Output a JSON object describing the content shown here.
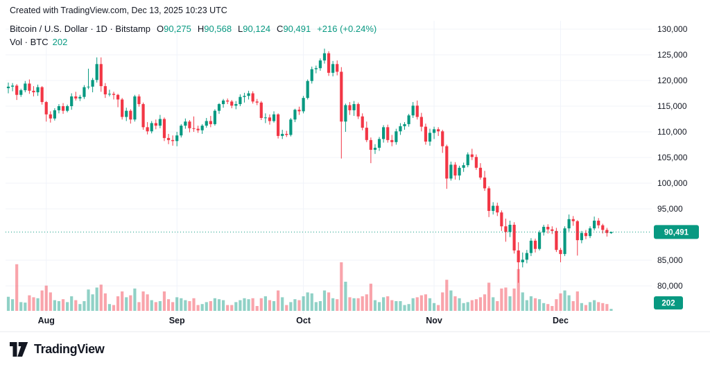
{
  "attribution": "Created with TradingView.com, Dec 13, 2025 10:23 UTC",
  "legend": {
    "title": "Bitcoin / U.S. Dollar · 1D · Bitstamp",
    "ohlc": [
      {
        "label": "O",
        "value": "90,275"
      },
      {
        "label": "H",
        "value": "90,568"
      },
      {
        "label": "L",
        "value": "90,124"
      },
      {
        "label": "C",
        "value": "90,491"
      }
    ],
    "change": "+216 (+0.24%)",
    "volume_label": "Vol · BTC",
    "volume_value": "202"
  },
  "colors": {
    "up": "#089981",
    "down": "#f23645",
    "vol_up": "rgba(8,153,129,0.45)",
    "vol_down": "rgba(242,54,69,0.45)",
    "text": "#131722",
    "muted": "#787b86",
    "grid": "#f0f3fa",
    "axis_border": "#e7e9ee",
    "badge": "#089981"
  },
  "y_axis": {
    "ticks": [
      {
        "value": 130000,
        "label": "130,000"
      },
      {
        "value": 125000,
        "label": "125,000"
      },
      {
        "value": 120000,
        "label": "120,000"
      },
      {
        "value": 115000,
        "label": "115,000"
      },
      {
        "value": 110000,
        "label": "110,000"
      },
      {
        "value": 105000,
        "label": "105,000"
      },
      {
        "value": 100000,
        "label": "100,000"
      },
      {
        "value": 95000,
        "label": "95,000"
      },
      {
        "value": 85000,
        "label": "85,000"
      },
      {
        "value": 80000,
        "label": "80,000"
      }
    ],
    "price_badge": {
      "value": 90491,
      "label": "90,491"
    },
    "volume_badge": "202"
  },
  "x_axis": {
    "ticks": [
      {
        "label": "Aug",
        "date": "2025-08-01"
      },
      {
        "label": "Sep",
        "date": "2025-09-01"
      },
      {
        "label": "Oct",
        "date": "2025-10-01"
      },
      {
        "label": "Nov",
        "date": "2025-11-01"
      },
      {
        "label": "Dec",
        "date": "2025-12-01"
      }
    ]
  },
  "footer": {
    "brand": "TradingView"
  },
  "chart_data": {
    "type": "candlestick",
    "symbol": "Bitcoin / U.S. Dollar",
    "interval": "1D",
    "exchange": "Bitstamp",
    "price_line": 90491,
    "ylim": [
      79000,
      131500
    ],
    "volume_max": 5000,
    "columns": [
      "date",
      "open",
      "high",
      "low",
      "close",
      "volume"
    ],
    "candles": [
      [
        "2025-07-23",
        118500,
        119600,
        117500,
        118800,
        1450
      ],
      [
        "2025-07-24",
        118800,
        119500,
        117900,
        119000,
        1200
      ],
      [
        "2025-07-25",
        119000,
        119300,
        116200,
        117200,
        4800
      ],
      [
        "2025-07-26",
        117200,
        118400,
        116800,
        118100,
        900
      ],
      [
        "2025-07-27",
        118100,
        119900,
        117700,
        119400,
        850
      ],
      [
        "2025-07-28",
        119400,
        120200,
        117400,
        118000,
        1600
      ],
      [
        "2025-07-29",
        118000,
        118900,
        116900,
        117700,
        1400
      ],
      [
        "2025-07-30",
        117700,
        119200,
        117000,
        118700,
        1300
      ],
      [
        "2025-07-31",
        118700,
        118900,
        115300,
        115800,
        2100
      ],
      [
        "2025-08-01",
        115800,
        116000,
        112000,
        113400,
        2600
      ],
      [
        "2025-08-02",
        113400,
        114000,
        111800,
        112600,
        1900
      ],
      [
        "2025-08-03",
        112600,
        114600,
        112200,
        114200,
        1100
      ],
      [
        "2025-08-04",
        114200,
        115400,
        113600,
        115000,
        1000
      ],
      [
        "2025-08-05",
        115000,
        115600,
        113500,
        114100,
        1200
      ],
      [
        "2025-08-06",
        114100,
        115300,
        113800,
        115000,
        900
      ],
      [
        "2025-08-07",
        115000,
        117500,
        114300,
        116900,
        1500
      ],
      [
        "2025-08-08",
        116900,
        117800,
        116100,
        116500,
        1100
      ],
      [
        "2025-08-09",
        116500,
        117200,
        116000,
        116800,
        700
      ],
      [
        "2025-08-10",
        116800,
        119100,
        116400,
        118700,
        1000
      ],
      [
        "2025-08-11",
        118700,
        122300,
        118300,
        118800,
        2200
      ],
      [
        "2025-08-12",
        118800,
        120500,
        117700,
        120100,
        1700
      ],
      [
        "2025-08-13",
        120100,
        124500,
        119600,
        123200,
        2400
      ],
      [
        "2025-08-14",
        123200,
        124500,
        117800,
        118900,
        2700
      ],
      [
        "2025-08-15",
        118900,
        119500,
        116600,
        117300,
        1800
      ],
      [
        "2025-08-16",
        117300,
        118200,
        116900,
        117400,
        700
      ],
      [
        "2025-08-17",
        117400,
        117800,
        116300,
        117200,
        600
      ],
      [
        "2025-08-18",
        117200,
        117400,
        114800,
        116300,
        1500
      ],
      [
        "2025-08-19",
        116300,
        116600,
        112400,
        112900,
        2000
      ],
      [
        "2025-08-20",
        112900,
        114700,
        112100,
        114100,
        1400
      ],
      [
        "2025-08-21",
        114100,
        114400,
        111600,
        112400,
        1600
      ],
      [
        "2025-08-22",
        112400,
        117200,
        112000,
        116900,
        2300
      ],
      [
        "2025-08-23",
        116900,
        117300,
        114900,
        115400,
        900
      ],
      [
        "2025-08-24",
        115400,
        115700,
        110400,
        110900,
        2000
      ],
      [
        "2025-08-25",
        110900,
        111900,
        109500,
        110100,
        1700
      ],
      [
        "2025-08-26",
        110100,
        112100,
        109700,
        111700,
        1100
      ],
      [
        "2025-08-27",
        111700,
        112400,
        110500,
        111200,
        900
      ],
      [
        "2025-08-28",
        111200,
        113300,
        110700,
        112500,
        1000
      ],
      [
        "2025-08-29",
        112500,
        112800,
        108200,
        108800,
        2000
      ],
      [
        "2025-08-30",
        108800,
        109600,
        107600,
        108400,
        1200
      ],
      [
        "2025-08-31",
        108400,
        109300,
        107300,
        108200,
        900
      ],
      [
        "2025-09-01",
        108200,
        110000,
        107200,
        109300,
        1400
      ],
      [
        "2025-09-02",
        109300,
        111500,
        108900,
        111200,
        1300
      ],
      [
        "2025-09-03",
        111200,
        112600,
        110600,
        112000,
        1100
      ],
      [
        "2025-09-04",
        112000,
        112300,
        109900,
        110700,
        1000
      ],
      [
        "2025-09-05",
        110700,
        113000,
        110000,
        110600,
        1300
      ],
      [
        "2025-09-06",
        110600,
        111200,
        109800,
        110300,
        600
      ],
      [
        "2025-09-07",
        110300,
        111500,
        109600,
        111200,
        700
      ],
      [
        "2025-09-08",
        111200,
        112700,
        110800,
        112100,
        900
      ],
      [
        "2025-09-09",
        112100,
        113100,
        110900,
        111500,
        1000
      ],
      [
        "2025-09-10",
        111500,
        114400,
        111200,
        114100,
        1300
      ],
      [
        "2025-09-11",
        114100,
        115600,
        113500,
        115400,
        1200
      ],
      [
        "2025-09-12",
        115400,
        116400,
        114700,
        116100,
        1100
      ],
      [
        "2025-09-13",
        116100,
        116500,
        115400,
        115900,
        600
      ],
      [
        "2025-09-14",
        115900,
        116200,
        114600,
        115100,
        600
      ],
      [
        "2025-09-15",
        115100,
        116000,
        114400,
        115400,
        900
      ],
      [
        "2025-09-16",
        115400,
        117300,
        115000,
        116800,
        1100
      ],
      [
        "2025-09-17",
        116800,
        117600,
        115700,
        117000,
        1300
      ],
      [
        "2025-09-18",
        117000,
        118000,
        116300,
        117500,
        1200
      ],
      [
        "2025-09-19",
        117500,
        117900,
        115500,
        115900,
        1300
      ],
      [
        "2025-09-20",
        115900,
        116400,
        115200,
        115700,
        500
      ],
      [
        "2025-09-21",
        115700,
        116000,
        112300,
        112700,
        1300
      ],
      [
        "2025-09-22",
        112700,
        113600,
        111700,
        112800,
        1500
      ],
      [
        "2025-09-23",
        112800,
        113400,
        111400,
        112100,
        1100
      ],
      [
        "2025-09-24",
        112100,
        114000,
        111800,
        113400,
        1000
      ],
      [
        "2025-09-25",
        113400,
        113600,
        108700,
        109200,
        2100
      ],
      [
        "2025-09-26",
        109200,
        110400,
        108600,
        109600,
        1400
      ],
      [
        "2025-09-27",
        109600,
        110200,
        109000,
        109400,
        600
      ],
      [
        "2025-09-28",
        109400,
        112700,
        109100,
        112400,
        900
      ],
      [
        "2025-09-29",
        112400,
        114500,
        111900,
        114300,
        1200
      ],
      [
        "2025-09-30",
        114300,
        114900,
        113300,
        114000,
        1100
      ],
      [
        "2025-10-01",
        114000,
        117000,
        113600,
        116600,
        1500
      ],
      [
        "2025-10-02",
        116600,
        120200,
        116300,
        119900,
        1900
      ],
      [
        "2025-10-03",
        119900,
        122700,
        119400,
        122200,
        1800
      ],
      [
        "2025-10-04",
        122200,
        122900,
        121400,
        122400,
        900
      ],
      [
        "2025-10-05",
        122400,
        124300,
        121900,
        123900,
        1000
      ],
      [
        "2025-10-06",
        123900,
        126200,
        123300,
        125300,
        2100
      ],
      [
        "2025-10-07",
        125300,
        125700,
        120900,
        121500,
        1900
      ],
      [
        "2025-10-08",
        121500,
        123800,
        120800,
        123200,
        1300
      ],
      [
        "2025-10-09",
        123200,
        123900,
        121000,
        121700,
        1200
      ],
      [
        "2025-10-10",
        121700,
        122600,
        104800,
        112000,
        5000
      ],
      [
        "2025-10-11",
        112000,
        115500,
        110000,
        115200,
        3000
      ],
      [
        "2025-10-12",
        115200,
        115800,
        113300,
        114200,
        1400
      ],
      [
        "2025-10-13",
        114200,
        116000,
        113100,
        115400,
        1300
      ],
      [
        "2025-10-14",
        115400,
        115700,
        112500,
        113000,
        1300
      ],
      [
        "2025-10-15",
        113000,
        113600,
        110300,
        110800,
        1500
      ],
      [
        "2025-10-16",
        110800,
        112000,
        108000,
        108400,
        1700
      ],
      [
        "2025-10-17",
        108400,
        108900,
        103900,
        106500,
        2800
      ],
      [
        "2025-10-18",
        106500,
        107600,
        105700,
        106900,
        1100
      ],
      [
        "2025-10-19",
        106900,
        109000,
        106300,
        108600,
        900
      ],
      [
        "2025-10-20",
        108600,
        111300,
        107900,
        110900,
        1400
      ],
      [
        "2025-10-21",
        110900,
        111400,
        107900,
        108400,
        1500
      ],
      [
        "2025-10-22",
        108400,
        109400,
        107200,
        108000,
        1100
      ],
      [
        "2025-10-23",
        108000,
        110600,
        107500,
        110100,
        1000
      ],
      [
        "2025-10-24",
        110100,
        111700,
        109400,
        111100,
        1000
      ],
      [
        "2025-10-25",
        111100,
        111900,
        110400,
        111500,
        600
      ],
      [
        "2025-10-26",
        111500,
        113500,
        111000,
        113200,
        700
      ],
      [
        "2025-10-27",
        113200,
        115800,
        112700,
        115100,
        1300
      ],
      [
        "2025-10-28",
        115100,
        116100,
        112400,
        112900,
        1400
      ],
      [
        "2025-10-29",
        112900,
        113700,
        110100,
        111000,
        1600
      ],
      [
        "2025-10-30",
        111000,
        111600,
        107500,
        108100,
        1700
      ],
      [
        "2025-10-31",
        108100,
        110600,
        107300,
        109800,
        1300
      ],
      [
        "2025-11-01",
        109800,
        111000,
        108600,
        110500,
        800
      ],
      [
        "2025-11-02",
        110500,
        110900,
        109200,
        110100,
        600
      ],
      [
        "2025-11-03",
        110100,
        110400,
        105900,
        107200,
        1900
      ],
      [
        "2025-11-04",
        107200,
        107500,
        98900,
        100900,
        3200
      ],
      [
        "2025-11-05",
        100900,
        104200,
        100500,
        103600,
        2100
      ],
      [
        "2025-11-06",
        103600,
        104100,
        100700,
        101500,
        1500
      ],
      [
        "2025-11-07",
        101500,
        103400,
        100600,
        103000,
        1300
      ],
      [
        "2025-11-08",
        103000,
        104000,
        102200,
        103500,
        800
      ],
      [
        "2025-11-09",
        103500,
        106000,
        103100,
        105600,
        900
      ],
      [
        "2025-11-10",
        105600,
        106700,
        104500,
        105100,
        1100
      ],
      [
        "2025-11-11",
        105100,
        105600,
        102600,
        103000,
        1200
      ],
      [
        "2025-11-12",
        103000,
        103900,
        100700,
        101100,
        1400
      ],
      [
        "2025-11-13",
        101100,
        102400,
        98500,
        99000,
        1700
      ],
      [
        "2025-11-14",
        99000,
        99400,
        93400,
        94600,
        2900
      ],
      [
        "2025-11-15",
        94600,
        96300,
        93900,
        95600,
        1400
      ],
      [
        "2025-11-16",
        95600,
        96200,
        93600,
        94300,
        1000
      ],
      [
        "2025-11-17",
        94300,
        94700,
        90700,
        91600,
        2300
      ],
      [
        "2025-11-18",
        91600,
        93100,
        88600,
        90500,
        2400
      ],
      [
        "2025-11-19",
        90500,
        92700,
        89500,
        91900,
        1500
      ],
      [
        "2025-11-20",
        91900,
        92400,
        86300,
        86900,
        2300
      ],
      [
        "2025-11-21",
        86900,
        88500,
        80600,
        84600,
        4300
      ],
      [
        "2025-11-22",
        84600,
        86500,
        83600,
        85100,
        1900
      ],
      [
        "2025-11-23",
        85100,
        87000,
        84400,
        86400,
        1100
      ],
      [
        "2025-11-24",
        86400,
        89300,
        85800,
        88800,
        1500
      ],
      [
        "2025-11-25",
        88800,
        89200,
        86500,
        87200,
        1300
      ],
      [
        "2025-11-26",
        87200,
        90800,
        86900,
        90400,
        1200
      ],
      [
        "2025-11-27",
        90400,
        91900,
        89800,
        91500,
        800
      ],
      [
        "2025-11-28",
        91500,
        92000,
        90200,
        91000,
        700
      ],
      [
        "2025-11-29",
        91000,
        91600,
        90100,
        90700,
        500
      ],
      [
        "2025-11-30",
        90700,
        91300,
        86600,
        87000,
        1200
      ],
      [
        "2025-12-01",
        87000,
        87400,
        84600,
        86200,
        1800
      ],
      [
        "2025-12-02",
        86200,
        91600,
        85800,
        91200,
        2100
      ],
      [
        "2025-12-03",
        91200,
        93900,
        90600,
        93000,
        1600
      ],
      [
        "2025-12-04",
        93000,
        93600,
        91700,
        92600,
        1000
      ],
      [
        "2025-12-05",
        92600,
        92800,
        85900,
        88900,
        2000
      ],
      [
        "2025-12-06",
        88900,
        90700,
        88300,
        90300,
        800
      ],
      [
        "2025-12-07",
        90300,
        90900,
        89100,
        89700,
        600
      ],
      [
        "2025-12-08",
        89700,
        91600,
        89300,
        91200,
        900
      ],
      [
        "2025-12-09",
        91200,
        93500,
        90800,
        92700,
        1100
      ],
      [
        "2025-12-10",
        92700,
        93200,
        91200,
        91800,
        900
      ],
      [
        "2025-12-11",
        91800,
        92100,
        90200,
        90900,
        800
      ],
      [
        "2025-12-12",
        90900,
        91300,
        89600,
        90300,
        700
      ],
      [
        "2025-12-13",
        90275,
        90568,
        90124,
        90491,
        202
      ]
    ]
  }
}
